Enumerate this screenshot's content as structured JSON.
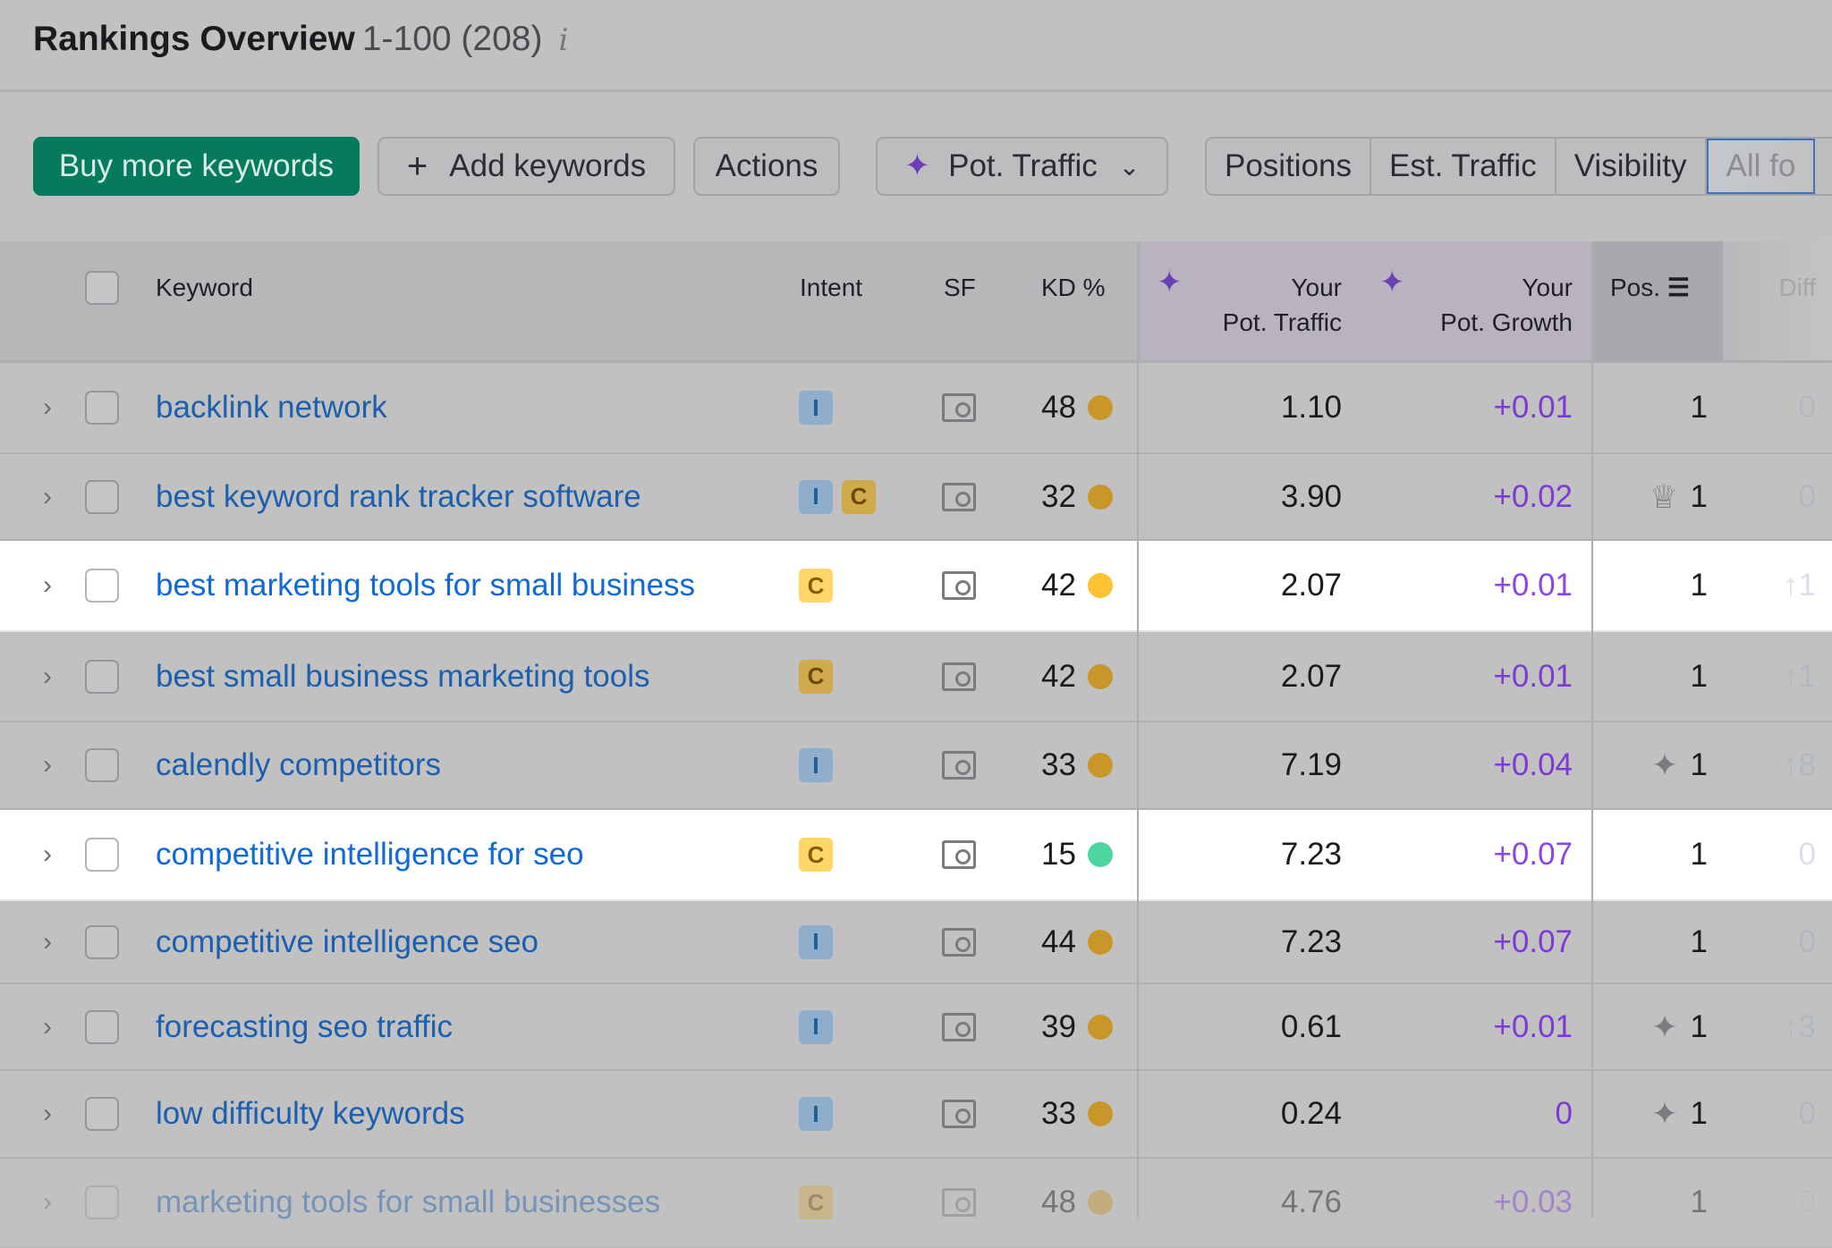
{
  "header": {
    "title": "Rankings Overview",
    "range": "1-100 (208)",
    "info_icon": "info-icon"
  },
  "toolbar": {
    "buy": "Buy more keywords",
    "add": "Add keywords",
    "add_icon": "plus-icon",
    "actions": "Actions",
    "metric": "Pot. Traffic",
    "metric_icon": "sparkle-icon",
    "tabs": [
      "Positions",
      "Est. Traffic",
      "Visibility",
      "All fo"
    ]
  },
  "colors": {
    "accent_green": "#067a5c",
    "link": "#1c5fae",
    "growth": "#7c3bd4",
    "kd_medium": "#c9962a",
    "kd_easy": "#4fd6a0"
  },
  "columns": {
    "keyword": "Keyword",
    "intent": "Intent",
    "sf": "SF",
    "kd": "KD %",
    "pot_traffic_1": "Your",
    "pot_traffic_2": "Pot. Traffic",
    "pot_growth_1": "Your",
    "pot_growth_2": "Pot. Growth",
    "pos": "Pos.",
    "diff": "Diff"
  },
  "rows": [
    {
      "keyword": "backlink network",
      "intent": [
        "I"
      ],
      "kd": "48",
      "kd_color": "#c9962a",
      "pot_traffic": "1.10",
      "pot_growth": "+0.01",
      "pos": "1",
      "pos_icon": "",
      "diff": "0",
      "highlight": false
    },
    {
      "keyword": "best keyword rank tracker software",
      "intent": [
        "I",
        "C"
      ],
      "kd": "32",
      "kd_color": "#c9962a",
      "pot_traffic": "3.90",
      "pot_growth": "+0.02",
      "pos": "1",
      "pos_icon": "crown-icon",
      "diff": "0",
      "highlight": false
    },
    {
      "keyword": "best marketing tools for small business",
      "intent": [
        "C"
      ],
      "kd": "42",
      "kd_color": "#ffc233",
      "pot_traffic": "2.07",
      "pot_growth": "+0.01",
      "pos": "1",
      "pos_icon": "",
      "diff": "↑1",
      "highlight": true
    },
    {
      "keyword": "best small business marketing tools",
      "intent": [
        "C"
      ],
      "kd": "42",
      "kd_color": "#c9962a",
      "pot_traffic": "2.07",
      "pot_growth": "+0.01",
      "pos": "1",
      "pos_icon": "",
      "diff": "↑1",
      "highlight": false
    },
    {
      "keyword": "calendly competitors",
      "intent": [
        "I"
      ],
      "kd": "33",
      "kd_color": "#c9962a",
      "pot_traffic": "7.19",
      "pot_growth": "+0.04",
      "pos": "1",
      "pos_icon": "featured-snippet-icon",
      "diff": "↑8",
      "highlight": false
    },
    {
      "keyword": "competitive intelligence for seo",
      "intent": [
        "C"
      ],
      "kd": "15",
      "kd_color": "#4fd6a0",
      "pot_traffic": "7.23",
      "pot_growth": "+0.07",
      "pos": "1",
      "pos_icon": "",
      "diff": "0",
      "highlight": true
    },
    {
      "keyword": "competitive intelligence seo",
      "intent": [
        "I"
      ],
      "kd": "44",
      "kd_color": "#c9962a",
      "pot_traffic": "7.23",
      "pot_growth": "+0.07",
      "pos": "1",
      "pos_icon": "",
      "diff": "0",
      "highlight": false
    },
    {
      "keyword": "forecasting seo traffic",
      "intent": [
        "I"
      ],
      "kd": "39",
      "kd_color": "#c9962a",
      "pot_traffic": "0.61",
      "pot_growth": "+0.01",
      "pos": "1",
      "pos_icon": "featured-snippet-icon",
      "diff": "↑3",
      "highlight": false
    },
    {
      "keyword": "low difficulty keywords",
      "intent": [
        "I"
      ],
      "kd": "33",
      "kd_color": "#c9962a",
      "pot_traffic": "0.24",
      "pot_growth": "0",
      "pos": "1",
      "pos_icon": "featured-snippet-icon",
      "diff": "0",
      "highlight": false
    },
    {
      "keyword": "marketing tools for small businesses",
      "intent": [
        "C"
      ],
      "kd": "48",
      "kd_color": "#c9962a",
      "pot_traffic": "4.76",
      "pot_growth": "+0.03",
      "pos": "1",
      "pos_icon": "",
      "diff": "0",
      "highlight": false
    }
  ]
}
